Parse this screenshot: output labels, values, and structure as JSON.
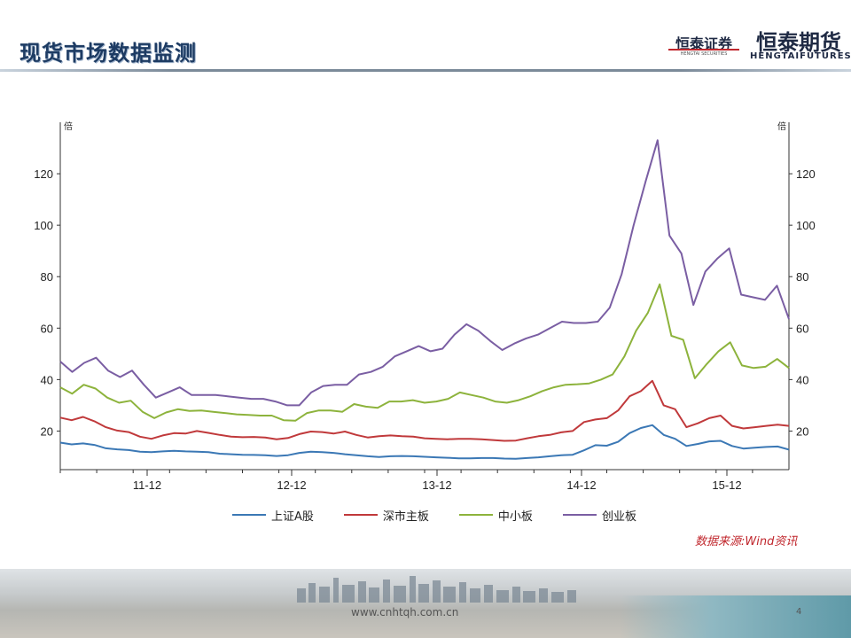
{
  "header": {
    "title": "现货市场数据监测",
    "logo_securities": "恒泰证券",
    "logo_securities_sub": "HENGTAI SECURITIES",
    "logo_futures": "恒泰期货",
    "logo_futures_sub": "HENGTAIFUTURES"
  },
  "chart_data": {
    "type": "line",
    "unit_left": "倍",
    "unit_right": "倍",
    "x_ticks": [
      "11-12",
      "12-12",
      "13-12",
      "14-12",
      "15-12"
    ],
    "ylim": [
      5,
      140
    ],
    "y_ticks": [
      20,
      40,
      60,
      80,
      100,
      120
    ],
    "grid": false,
    "legend_position": "bottom",
    "series": [
      {
        "name": "上证A股",
        "color": "#3b78b5",
        "values": [
          15.5,
          14.8,
          15.2,
          14.6,
          13.3,
          12.9,
          12.6,
          12.0,
          11.8,
          12.1,
          12.3,
          12.1,
          12.0,
          11.8,
          11.2,
          11.0,
          10.8,
          10.7,
          10.6,
          10.3,
          10.6,
          11.5,
          12.0,
          11.8,
          11.5,
          11.0,
          10.6,
          10.2,
          9.9,
          10.2,
          10.3,
          10.2,
          10.0,
          9.8,
          9.6,
          9.4,
          9.4,
          9.5,
          9.5,
          9.3,
          9.2,
          9.5,
          9.8,
          10.2,
          10.6,
          10.8,
          12.5,
          14.5,
          14.3,
          15.8,
          19.2,
          21.2,
          22.3,
          18.5,
          17.0,
          14.2,
          15.0,
          16.0,
          16.2,
          14.2,
          13.2,
          13.5,
          13.8,
          14.0,
          12.8
        ]
      },
      {
        "name": "深市主板",
        "color": "#c0393b",
        "values": [
          25.2,
          24.2,
          25.5,
          23.8,
          21.5,
          20.2,
          19.6,
          17.8,
          17.0,
          18.3,
          19.2,
          19.0,
          20.0,
          19.3,
          18.5,
          17.8,
          17.6,
          17.7,
          17.5,
          16.8,
          17.3,
          18.8,
          19.8,
          19.6,
          19.0,
          19.8,
          18.5,
          17.5,
          18.0,
          18.3,
          18.0,
          17.8,
          17.2,
          17.0,
          16.8,
          17.0,
          17.0,
          16.8,
          16.5,
          16.2,
          16.3,
          17.2,
          18.0,
          18.5,
          19.5,
          20.0,
          23.5,
          24.5,
          25.0,
          28.0,
          33.5,
          35.5,
          39.5,
          30.0,
          28.5,
          21.5,
          23.0,
          25.0,
          26.0,
          22.0,
          21.0,
          21.5,
          22.0,
          22.5,
          22.0
        ]
      },
      {
        "name": "中小板",
        "color": "#8db33c",
        "values": [
          37.0,
          34.5,
          38.0,
          36.5,
          33.0,
          31.0,
          31.8,
          27.5,
          25.0,
          27.2,
          28.5,
          27.8,
          28.0,
          27.5,
          27.0,
          26.5,
          26.3,
          26.0,
          26.0,
          24.2,
          24.0,
          27.0,
          28.0,
          28.0,
          27.5,
          30.5,
          29.5,
          29.0,
          31.5,
          31.5,
          32.0,
          31.0,
          31.5,
          32.5,
          35.0,
          34.0,
          33.0,
          31.5,
          31.0,
          32.0,
          33.5,
          35.5,
          37.0,
          38.0,
          38.2,
          38.5,
          40.0,
          42.0,
          49.0,
          59.0,
          66.0,
          77.0,
          57.0,
          55.5,
          40.5,
          46.0,
          51.0,
          54.5,
          45.5,
          44.5,
          45.0,
          48.0,
          44.5
        ]
      },
      {
        "name": "创业板",
        "color": "#7a5ea3",
        "values": [
          47.0,
          43.0,
          46.5,
          48.5,
          43.5,
          41.0,
          43.5,
          38.0,
          33.0,
          35.0,
          37.0,
          34.0,
          34.0,
          34.0,
          33.5,
          33.0,
          32.5,
          32.5,
          31.5,
          30.0,
          30.0,
          35.0,
          37.5,
          38.0,
          38.0,
          42.0,
          43.0,
          45.0,
          49.0,
          51.0,
          53.0,
          51.0,
          52.0,
          57.5,
          61.5,
          59.0,
          55.0,
          51.5,
          54.0,
          56.0,
          57.5,
          60.0,
          62.5,
          62.0,
          62.0,
          62.5,
          68.0,
          81.0,
          100.0,
          117.0,
          133.0,
          96.0,
          89.0,
          69.0,
          82.0,
          87.0,
          91.0,
          73.0,
          72.0,
          71.0,
          76.5,
          63.5
        ]
      }
    ]
  },
  "source_note": "数据来源:Wind资讯",
  "footer": {
    "url": "www.cnhtqh.com.cn",
    "page_number": "4"
  }
}
